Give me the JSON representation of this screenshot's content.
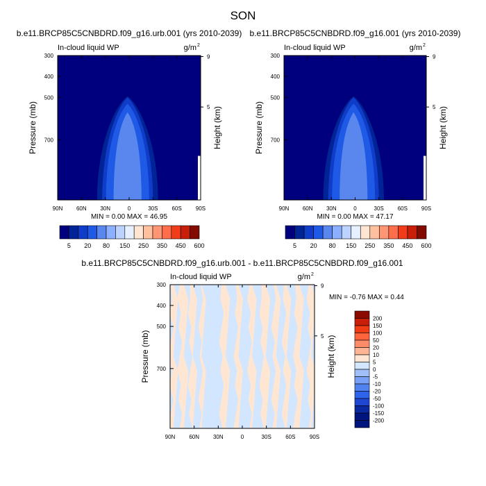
{
  "figure_title": "SON",
  "colors": {
    "abs_scale": [
      "#00007f",
      "#002496",
      "#0f3cc8",
      "#1e5ae6",
      "#5a87ee",
      "#8cafff",
      "#bcd2ff",
      "#e6f0ff",
      "#ffe6d2",
      "#ffc0a0",
      "#ff9673",
      "#ff6e4b",
      "#f03c19",
      "#c81e0a",
      "#820a00"
    ],
    "diff_scale": [
      "#00147d",
      "#0a28a0",
      "#1e46d2",
      "#2d64eb",
      "#5082f0",
      "#78a0f5",
      "#a0bef8",
      "#d2e6ff",
      "#ffe6d2",
      "#ffb496",
      "#ff8c69",
      "#ff643c",
      "#f03c14",
      "#c81e0a",
      "#8c0a00"
    ]
  },
  "chart_data": [
    {
      "type": "heatmap",
      "title": "b.e11.BRCP85C5CNBDRD.f09_g16.urb.001 (yrs 2010-2039)",
      "variable_label": "In-cloud liquid WP",
      "units_label": "g/m",
      "units_exponent": "2",
      "xlabel": "",
      "ylabel": "Pressure (mb)",
      "ylabel_right": "Height (km)",
      "x_ticks": [
        "90N",
        "60N",
        "30N",
        "0",
        "30S",
        "60S",
        "90S"
      ],
      "y_ticks": [
        "300",
        "400",
        "500",
        "700"
      ],
      "y_ticks_right": [
        "9",
        "5"
      ],
      "xlim": [
        90,
        -90
      ],
      "ylim_mb": [
        300,
        850
      ],
      "stats": {
        "min_label": "MIN =",
        "min": "0.00",
        "max_label": "MAX =",
        "max": "46.95"
      },
      "colorbar_ticks": [
        "5",
        "20",
        "80",
        "150",
        "250",
        "350",
        "450",
        "600"
      ],
      "dome": {
        "levels": [
          {
            "level": 1,
            "peak_mb": 495,
            "width_deg": 24
          },
          {
            "level": 2,
            "peak_mb": 500,
            "width_deg": 20
          },
          {
            "level": 3,
            "peak_mb": 530,
            "width_deg": 17
          },
          {
            "level": 4,
            "peak_mb": 570,
            "width_deg": 11
          }
        ]
      }
    },
    {
      "type": "heatmap",
      "title": "b.e11.BRCP85C5CNBDRD.f09_g16.001 (yrs 2010-2039)",
      "variable_label": "In-cloud liquid WP",
      "units_label": "g/m",
      "units_exponent": "2",
      "xlabel": "",
      "ylabel": "Pressure (mb)",
      "ylabel_right": "Height (km)",
      "x_ticks": [
        "90N",
        "60N",
        "30N",
        "0",
        "30S",
        "60S",
        "90S"
      ],
      "y_ticks": [
        "300",
        "400",
        "500",
        "700"
      ],
      "y_ticks_right": [
        "9",
        "5"
      ],
      "xlim": [
        90,
        -90
      ],
      "ylim_mb": [
        300,
        850
      ],
      "stats": {
        "min_label": "MIN =",
        "min": "0.00",
        "max_label": "MAX =",
        "max": "47.17"
      },
      "colorbar_ticks": [
        "5",
        "20",
        "80",
        "150",
        "250",
        "350",
        "450",
        "600"
      ],
      "dome": {
        "levels": [
          {
            "level": 1,
            "peak_mb": 495,
            "width_deg": 24
          },
          {
            "level": 2,
            "peak_mb": 500,
            "width_deg": 20
          },
          {
            "level": 3,
            "peak_mb": 530,
            "width_deg": 17
          },
          {
            "level": 4,
            "peak_mb": 570,
            "width_deg": 11
          }
        ]
      }
    },
    {
      "type": "heatmap",
      "title": "b.e11.BRCP85C5CNBDRD.f09_g16.urb.001 - b.e11.BRCP85C5CNBDRD.f09_g16.001",
      "variable_label": "In-cloud liquid WP",
      "units_label": "g/m",
      "units_exponent": "2",
      "xlabel": "",
      "ylabel": "Pressure (mb)",
      "ylabel_right": "Height (km)",
      "x_ticks": [
        "90N",
        "60N",
        "30N",
        "0",
        "30S",
        "60S",
        "90S"
      ],
      "y_ticks": [
        "300",
        "400",
        "500",
        "700"
      ],
      "y_ticks_right": [
        "9",
        "5"
      ],
      "xlim": [
        90,
        -90
      ],
      "ylim_mb": [
        300,
        850
      ],
      "stats": {
        "min_label": "MIN =",
        "min": "-0.76",
        "max_label": "MAX =",
        "max": "0.44"
      },
      "colorbar_ticks": [
        "200",
        "150",
        "100",
        "50",
        "20",
        "10",
        "5",
        "0",
        "-5",
        "-10",
        "-20",
        "-50",
        "-100",
        "-150",
        "-200"
      ],
      "background_level": "-5 to 0",
      "positive_bands": [
        {
          "lat": 86,
          "width": 3
        },
        {
          "lat": 74,
          "width": 4
        },
        {
          "lat": 62,
          "width": 3
        },
        {
          "lat": 50,
          "width": 2
        },
        {
          "lat": 22,
          "width": 4
        },
        {
          "lat": 5,
          "width": 3
        },
        {
          "lat": -12,
          "width": 3
        },
        {
          "lat": -28,
          "width": 4
        },
        {
          "lat": -42,
          "width": 3
        },
        {
          "lat": -55,
          "width": 3
        },
        {
          "lat": -70,
          "width": 4
        },
        {
          "lat": -86,
          "width": 3
        }
      ]
    }
  ]
}
